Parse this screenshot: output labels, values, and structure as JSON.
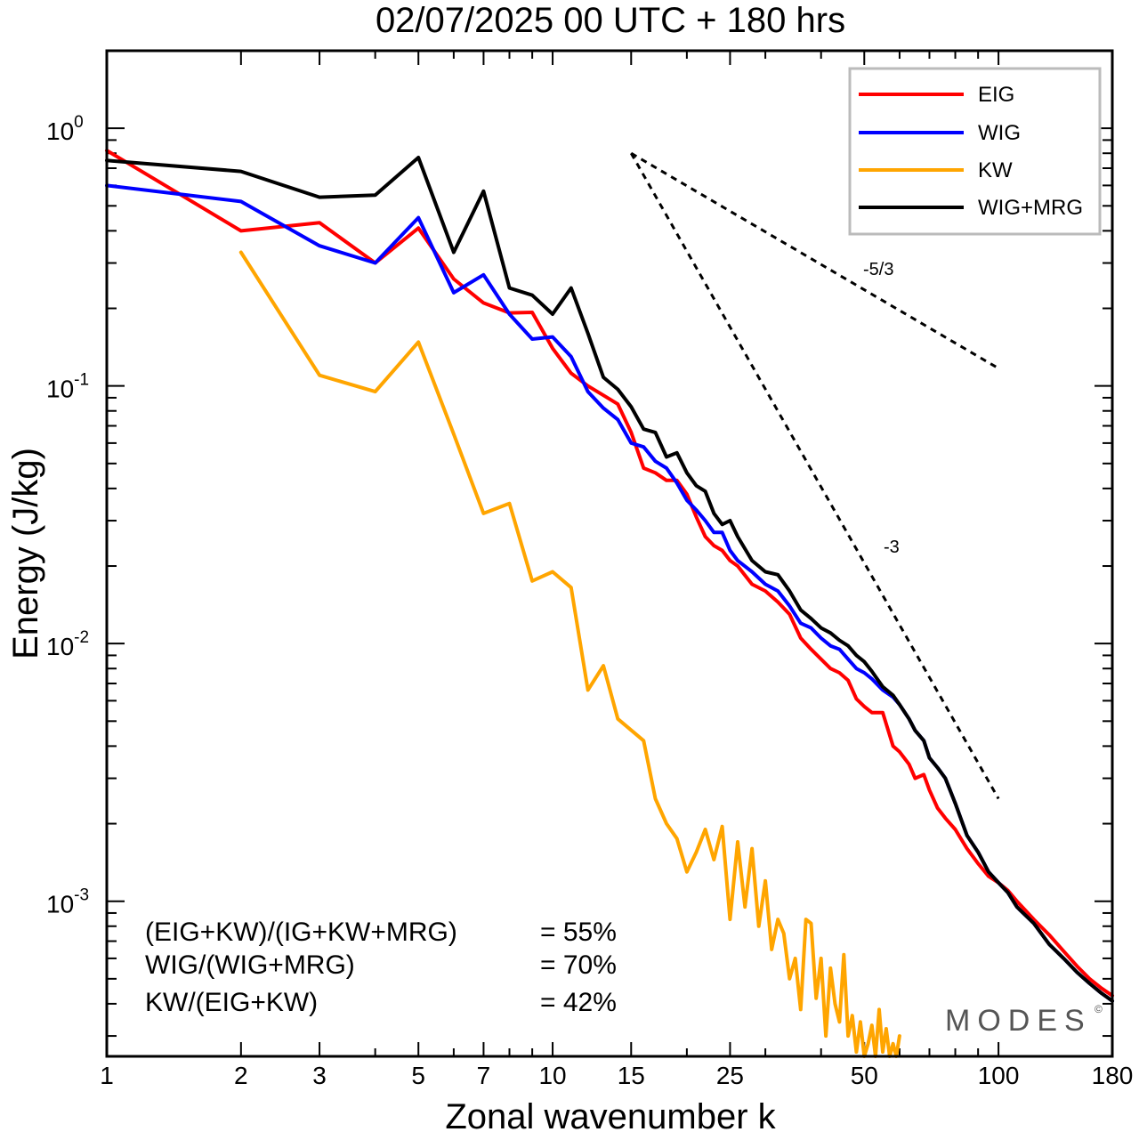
{
  "chart_data": {
    "type": "line",
    "title": "02/07/2025  00 UTC  + 180 hrs",
    "xlabel": "Zonal wavenumber k",
    "ylabel": "Energy (J/kg)",
    "x_scale": "log",
    "y_scale": "log",
    "xlim": [
      1,
      180
    ],
    "ylim": [
      0.00025,
      2.0
    ],
    "x_ticks": [
      1,
      2,
      3,
      5,
      7,
      10,
      15,
      25,
      50,
      100,
      180
    ],
    "x_tick_labels": [
      "1",
      "2",
      "3",
      "5",
      "7",
      "10",
      "15",
      "25",
      "50",
      "100",
      "180"
    ],
    "y_ticks": [
      {
        "value": 1,
        "base": "10",
        "exp": "0"
      },
      {
        "value": 0.1,
        "base": "10",
        "exp": "-1"
      },
      {
        "value": 0.01,
        "base": "10",
        "exp": "-2"
      },
      {
        "value": 0.001,
        "base": "10",
        "exp": "-3"
      }
    ],
    "grid": false,
    "legend_position": "top-right",
    "series": [
      {
        "name": "EIG",
        "color": "#ff0000",
        "points": [
          [
            1,
            0.82
          ],
          [
            2,
            0.4
          ],
          [
            3,
            0.43
          ],
          [
            4,
            0.3
          ],
          [
            5,
            0.41
          ],
          [
            6,
            0.26
          ],
          [
            7,
            0.21
          ],
          [
            8,
            0.192
          ],
          [
            9,
            0.193
          ],
          [
            10,
            0.14
          ],
          [
            11,
            0.112
          ],
          [
            12,
            0.1
          ],
          [
            13,
            0.092
          ],
          [
            14,
            0.085
          ],
          [
            15,
            0.066
          ],
          [
            16,
            0.048
          ],
          [
            17,
            0.046
          ],
          [
            18,
            0.043
          ],
          [
            19,
            0.043
          ],
          [
            20,
            0.038
          ],
          [
            21,
            0.031
          ],
          [
            22,
            0.026
          ],
          [
            23,
            0.024
          ],
          [
            24,
            0.023
          ],
          [
            25,
            0.021
          ],
          [
            26,
            0.02
          ],
          [
            28,
            0.017
          ],
          [
            30,
            0.016
          ],
          [
            32,
            0.0145
          ],
          [
            34,
            0.013
          ],
          [
            36,
            0.0105
          ],
          [
            38,
            0.0095
          ],
          [
            40,
            0.0087
          ],
          [
            42,
            0.008
          ],
          [
            44,
            0.0077
          ],
          [
            46,
            0.0072
          ],
          [
            48,
            0.0061
          ],
          [
            50,
            0.0057
          ],
          [
            52,
            0.0054
          ],
          [
            55,
            0.0054
          ],
          [
            58,
            0.004
          ],
          [
            60,
            0.0038
          ],
          [
            63,
            0.0034
          ],
          [
            65,
            0.003
          ],
          [
            68,
            0.0031
          ],
          [
            70,
            0.0027
          ],
          [
            73,
            0.0023
          ],
          [
            76,
            0.0021
          ],
          [
            80,
            0.0019
          ],
          [
            85,
            0.0016
          ],
          [
            90,
            0.0014
          ],
          [
            95,
            0.00125
          ],
          [
            100,
            0.00118
          ],
          [
            105,
            0.0011
          ],
          [
            110,
            0.001
          ],
          [
            120,
            0.00085
          ],
          [
            130,
            0.00074
          ],
          [
            140,
            0.00064
          ],
          [
            150,
            0.00056
          ],
          [
            160,
            0.0005
          ],
          [
            170,
            0.00046
          ],
          [
            180,
            0.00043
          ]
        ]
      },
      {
        "name": "WIG",
        "color": "#0000ff",
        "points": [
          [
            1,
            0.6
          ],
          [
            2,
            0.52
          ],
          [
            3,
            0.35
          ],
          [
            4,
            0.3
          ],
          [
            5,
            0.45
          ],
          [
            6,
            0.23
          ],
          [
            7,
            0.27
          ],
          [
            8,
            0.19
          ],
          [
            9,
            0.152
          ],
          [
            10,
            0.155
          ],
          [
            11,
            0.13
          ],
          [
            12,
            0.095
          ],
          [
            13,
            0.082
          ],
          [
            14,
            0.074
          ],
          [
            15,
            0.06
          ],
          [
            16,
            0.058
          ],
          [
            17,
            0.051
          ],
          [
            18,
            0.048
          ],
          [
            19,
            0.042
          ],
          [
            20,
            0.036
          ],
          [
            21,
            0.033
          ],
          [
            22,
            0.03
          ],
          [
            23,
            0.027
          ],
          [
            24,
            0.027
          ],
          [
            25,
            0.023
          ],
          [
            26,
            0.021
          ],
          [
            28,
            0.019
          ],
          [
            30,
            0.017
          ],
          [
            32,
            0.016
          ],
          [
            34,
            0.014
          ],
          [
            36,
            0.012
          ],
          [
            38,
            0.0115
          ],
          [
            40,
            0.0105
          ],
          [
            42,
            0.0098
          ],
          [
            44,
            0.0095
          ],
          [
            46,
            0.0087
          ],
          [
            48,
            0.008
          ],
          [
            50,
            0.0077
          ],
          [
            52,
            0.0073
          ],
          [
            55,
            0.0066
          ],
          [
            58,
            0.0062
          ],
          [
            60,
            0.0058
          ],
          [
            63,
            0.0051
          ],
          [
            65,
            0.0046
          ],
          [
            68,
            0.0042
          ],
          [
            70,
            0.0036
          ],
          [
            73,
            0.0033
          ],
          [
            76,
            0.003
          ],
          [
            80,
            0.0024
          ],
          [
            85,
            0.0018
          ],
          [
            90,
            0.00155
          ],
          [
            95,
            0.0013
          ],
          [
            100,
            0.00118
          ],
          [
            105,
            0.00108
          ],
          [
            110,
            0.00095
          ],
          [
            120,
            0.00082
          ],
          [
            130,
            0.00068
          ],
          [
            140,
            0.0006
          ],
          [
            150,
            0.00053
          ],
          [
            160,
            0.00048
          ],
          [
            170,
            0.00044
          ],
          [
            180,
            0.00041
          ]
        ]
      },
      {
        "name": "KW",
        "color": "#ffa500",
        "points": [
          [
            2,
            0.33
          ],
          [
            3,
            0.11
          ],
          [
            4,
            0.095
          ],
          [
            5,
            0.148
          ],
          [
            6,
            0.065
          ],
          [
            7,
            0.032
          ],
          [
            8,
            0.035
          ],
          [
            9,
            0.0175
          ],
          [
            10,
            0.019
          ],
          [
            11,
            0.0165
          ],
          [
            12,
            0.0066
          ],
          [
            13,
            0.0082
          ],
          [
            14,
            0.0051
          ],
          [
            16,
            0.0042
          ],
          [
            17,
            0.0025
          ],
          [
            18,
            0.002
          ],
          [
            19,
            0.00175
          ],
          [
            20,
            0.0013
          ],
          [
            21,
            0.00155
          ],
          [
            22,
            0.0019
          ],
          [
            23,
            0.00145
          ],
          [
            24,
            0.00195
          ],
          [
            25,
            0.00085
          ],
          [
            26,
            0.0017
          ],
          [
            27,
            0.00095
          ],
          [
            28,
            0.0016
          ],
          [
            29,
            0.0008
          ],
          [
            30,
            0.0012
          ],
          [
            31,
            0.00065
          ],
          [
            32,
            0.00085
          ],
          [
            33,
            0.00075
          ],
          [
            34,
            0.0005
          ],
          [
            35,
            0.0006
          ],
          [
            36,
            0.00038
          ],
          [
            37,
            0.00085
          ],
          [
            38,
            0.00082
          ],
          [
            39,
            0.00042
          ],
          [
            40,
            0.0006
          ],
          [
            41,
            0.0003
          ],
          [
            42,
            0.00055
          ],
          [
            43,
            0.0004
          ],
          [
            44,
            0.00034
          ],
          [
            45,
            0.00062
          ],
          [
            46,
            0.0003
          ],
          [
            47,
            0.00036
          ],
          [
            48,
            0.00026
          ],
          [
            49,
            0.00034
          ],
          [
            50,
            0.00025
          ],
          [
            51,
            0.00028
          ],
          [
            52,
            0.00033
          ],
          [
            53,
            0.00025
          ],
          [
            54,
            0.00038
          ],
          [
            55,
            0.00026
          ],
          [
            56,
            0.00032
          ],
          [
            57,
            0.00025
          ],
          [
            58,
            0.00028
          ],
          [
            59,
            0.00025
          ],
          [
            60,
            0.0003
          ]
        ]
      },
      {
        "name": "WIG+MRG",
        "color": "#000000",
        "points": [
          [
            1,
            0.75
          ],
          [
            2,
            0.68
          ],
          [
            3,
            0.54
          ],
          [
            4,
            0.55
          ],
          [
            5,
            0.77
          ],
          [
            6,
            0.33
          ],
          [
            7,
            0.57
          ],
          [
            8,
            0.24
          ],
          [
            9,
            0.225
          ],
          [
            10,
            0.19
          ],
          [
            11,
            0.24
          ],
          [
            12,
            0.16
          ],
          [
            13,
            0.108
          ],
          [
            14,
            0.097
          ],
          [
            15,
            0.083
          ],
          [
            16,
            0.068
          ],
          [
            17,
            0.066
          ],
          [
            18,
            0.053
          ],
          [
            19,
            0.055
          ],
          [
            20,
            0.046
          ],
          [
            21,
            0.041
          ],
          [
            22,
            0.039
          ],
          [
            23,
            0.032
          ],
          [
            24,
            0.029
          ],
          [
            25,
            0.03
          ],
          [
            26,
            0.026
          ],
          [
            28,
            0.021
          ],
          [
            30,
            0.019
          ],
          [
            32,
            0.0185
          ],
          [
            34,
            0.016
          ],
          [
            36,
            0.0135
          ],
          [
            38,
            0.0125
          ],
          [
            40,
            0.0115
          ],
          [
            42,
            0.011
          ],
          [
            44,
            0.0103
          ],
          [
            46,
            0.0098
          ],
          [
            48,
            0.009
          ],
          [
            50,
            0.0085
          ],
          [
            52,
            0.0078
          ],
          [
            55,
            0.0068
          ],
          [
            58,
            0.0063
          ],
          [
            60,
            0.0058
          ],
          [
            63,
            0.0051
          ],
          [
            65,
            0.0046
          ],
          [
            68,
            0.0042
          ],
          [
            70,
            0.0036
          ],
          [
            73,
            0.0033
          ],
          [
            76,
            0.003
          ],
          [
            80,
            0.0024
          ],
          [
            85,
            0.0018
          ],
          [
            90,
            0.00155
          ],
          [
            95,
            0.0013
          ],
          [
            100,
            0.00118
          ],
          [
            105,
            0.00108
          ],
          [
            110,
            0.00095
          ],
          [
            120,
            0.00082
          ],
          [
            130,
            0.00068
          ],
          [
            140,
            0.0006
          ],
          [
            150,
            0.00053
          ],
          [
            160,
            0.00048
          ],
          [
            170,
            0.00044
          ],
          [
            180,
            0.00041
          ]
        ]
      }
    ],
    "reference_lines": [
      {
        "label": "-5/3",
        "points": [
          [
            15,
            0.8
          ],
          [
            100,
            0.117
          ]
        ]
      },
      {
        "label": "-3",
        "points": [
          [
            15,
            0.8
          ],
          [
            100,
            0.0025
          ]
        ]
      }
    ],
    "annotations": [
      {
        "text": "(EIG+KW)/(IG+KW+MRG)",
        "value": "= 55%"
      },
      {
        "text": "WIG/(WIG+MRG)",
        "value": "= 70%"
      },
      {
        "text": "KW/(EIG+KW)",
        "value": "= 42%"
      }
    ],
    "watermark": "MODES",
    "watermark_mark": "©"
  }
}
